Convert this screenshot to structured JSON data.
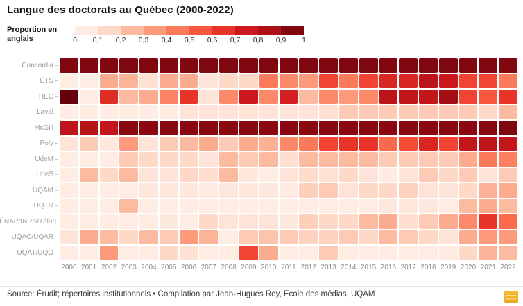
{
  "header": {
    "title": "Langue des doctorats au Québec (2000-2022)"
  },
  "legend": {
    "label_line1": "Proportion en",
    "label_line2": "anglais"
  },
  "footer": {
    "text": "Source: Érudit; répertoires institutionnels • Compilation par Jean-Hugues Roy, École des médias, UQAM"
  },
  "logo": {
    "name": "flourish-style-yellow-badge"
  },
  "chart_data": {
    "type": "heatmap",
    "title": "Langue des doctorats au Québec (2000-2022)",
    "legend_title": "Proportion en anglais",
    "legend_ticks": [
      "0",
      "0,1",
      "0,2",
      "0,3",
      "0,4",
      "0,5",
      "0,6",
      "0,7",
      "0,8",
      "0,9",
      "1"
    ],
    "value_range": [
      0,
      1
    ],
    "colormap_name": "Reds",
    "colormap_anchors": [
      [
        0.0,
        "#fff5f0"
      ],
      [
        0.125,
        "#fee0d2"
      ],
      [
        0.25,
        "#fcbba1"
      ],
      [
        0.375,
        "#fc9272"
      ],
      [
        0.5,
        "#fb6a4a"
      ],
      [
        0.625,
        "#ef3b2c"
      ],
      [
        0.75,
        "#cb181d"
      ],
      [
        0.875,
        "#a50f15"
      ],
      [
        1.0,
        "#67000d"
      ]
    ],
    "x": [
      "2000",
      "2001",
      "2002",
      "2003",
      "2004",
      "2005",
      "2006",
      "2007",
      "2008",
      "2009",
      "2010",
      "2011",
      "2012",
      "2013",
      "2014",
      "2015",
      "2016",
      "2017",
      "2018",
      "2019",
      "2020",
      "2021",
      "2022"
    ],
    "rows": [
      {
        "name": "Concordia",
        "values": [
          0.95,
          0.95,
          0.95,
          0.95,
          0.95,
          0.95,
          0.95,
          0.95,
          0.95,
          0.95,
          0.95,
          0.95,
          0.95,
          0.95,
          0.95,
          0.95,
          0.95,
          0.95,
          0.95,
          0.95,
          0.95,
          0.95,
          0.95
        ]
      },
      {
        "name": "ÉTS",
        "values": [
          0.05,
          0.05,
          0.3,
          0.27,
          0.12,
          0.3,
          0.3,
          0.1,
          0.15,
          0.15,
          0.45,
          0.4,
          0.35,
          0.6,
          0.45,
          0.6,
          0.7,
          0.7,
          0.8,
          0.75,
          0.6,
          0.6,
          0.45
        ]
      },
      {
        "name": "HEC",
        "values": [
          1.0,
          0.05,
          0.68,
          0.25,
          0.3,
          0.42,
          0.65,
          0.1,
          0.4,
          0.75,
          0.4,
          0.72,
          0.25,
          0.4,
          0.35,
          0.4,
          0.8,
          0.78,
          0.78,
          0.88,
          0.6,
          0.55,
          0.65
        ]
      },
      {
        "name": "Laval",
        "values": [
          0.05,
          0.05,
          0.06,
          0.05,
          0.05,
          0.05,
          0.1,
          0.1,
          0.1,
          0.1,
          0.1,
          0.1,
          0.1,
          0.12,
          0.2,
          0.2,
          0.2,
          0.2,
          0.2,
          0.2,
          0.2,
          0.15,
          0.25
        ]
      },
      {
        "name": "McGill",
        "values": [
          0.8,
          0.82,
          0.78,
          0.93,
          0.93,
          0.93,
          0.93,
          0.93,
          0.93,
          0.93,
          0.93,
          0.93,
          0.93,
          0.93,
          0.93,
          0.93,
          0.93,
          0.93,
          0.93,
          0.93,
          0.93,
          0.93,
          0.95
        ]
      },
      {
        "name": "Poly",
        "values": [
          0.1,
          0.2,
          0.08,
          0.35,
          0.1,
          0.2,
          0.25,
          0.3,
          0.2,
          0.3,
          0.28,
          0.4,
          0.45,
          0.6,
          0.65,
          0.65,
          0.5,
          0.58,
          0.7,
          0.6,
          0.78,
          0.8,
          0.78
        ]
      },
      {
        "name": "UdeM",
        "values": [
          0.05,
          0.05,
          0.05,
          0.2,
          0.15,
          0.15,
          0.15,
          0.1,
          0.25,
          0.2,
          0.25,
          0.13,
          0.25,
          0.25,
          0.25,
          0.25,
          0.2,
          0.2,
          0.2,
          0.2,
          0.3,
          0.45,
          0.43
        ]
      },
      {
        "name": "UdeS",
        "values": [
          0.05,
          0.25,
          0.15,
          0.25,
          0.1,
          0.1,
          0.15,
          0.13,
          0.25,
          0.08,
          0.05,
          0.1,
          0.14,
          0.12,
          0.15,
          0.1,
          0.06,
          0.1,
          0.2,
          0.15,
          0.2,
          0.1,
          0.2
        ]
      },
      {
        "name": "UQAM",
        "values": [
          0.05,
          0.05,
          0.05,
          0.05,
          0.08,
          0.08,
          0.08,
          0.06,
          0.08,
          0.08,
          0.08,
          0.06,
          0.18,
          0.2,
          0.1,
          0.15,
          0.15,
          0.17,
          0.1,
          0.1,
          0.15,
          0.28,
          0.3
        ]
      },
      {
        "name": "UQTR",
        "values": [
          0.05,
          0.05,
          0.05,
          0.25,
          0.05,
          0.05,
          0.05,
          0.05,
          0.05,
          0.05,
          0.05,
          0.05,
          0.05,
          0.05,
          0.05,
          0.05,
          0.08,
          0.08,
          0.08,
          0.05,
          0.25,
          0.3,
          0.25
        ]
      },
      {
        "name": "ÉNAP/INRS/Téluq",
        "values": [
          0.05,
          0.05,
          0.05,
          0.05,
          0.05,
          0.07,
          0.05,
          0.15,
          0.1,
          0.1,
          0.1,
          0.07,
          0.18,
          0.15,
          0.15,
          0.25,
          0.3,
          0.13,
          0.2,
          0.3,
          0.4,
          0.65,
          0.5
        ]
      },
      {
        "name": "UQAC/UQAR",
        "values": [
          0.1,
          0.3,
          0.25,
          0.15,
          0.25,
          0.2,
          0.35,
          0.27,
          0.05,
          0.2,
          0.22,
          0.2,
          0.17,
          0.17,
          0.2,
          0.15,
          0.25,
          0.2,
          0.15,
          0.1,
          0.3,
          0.35,
          0.35
        ]
      },
      {
        "name": "UQAT/UQO",
        "values": [
          0.05,
          0.05,
          0.35,
          0.05,
          0.05,
          0.15,
          0.12,
          0.05,
          0.05,
          0.6,
          0.3,
          0.05,
          0.05,
          0.2,
          0.05,
          0.05,
          0.05,
          0.05,
          0.05,
          0.06,
          0.15,
          0.27,
          0.25
        ]
      }
    ]
  }
}
